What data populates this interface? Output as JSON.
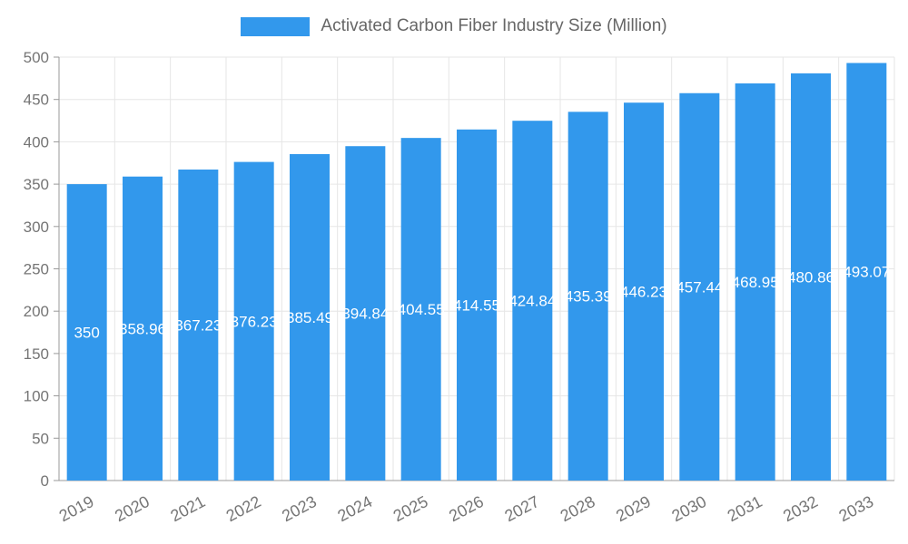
{
  "chart_data": {
    "type": "bar",
    "title": "Activated Carbon Fiber Industry Size (Million)",
    "categories": [
      "2019",
      "2020",
      "2021",
      "2022",
      "2023",
      "2024",
      "2025",
      "2026",
      "2027",
      "2028",
      "2029",
      "2030",
      "2031",
      "2032",
      "2033"
    ],
    "values": [
      350,
      358.96,
      367.23,
      376.23,
      385.49,
      394.84,
      404.55,
      414.55,
      424.84,
      435.39,
      446.23,
      457.44,
      468.95,
      480.86,
      493.07
    ],
    "value_labels": [
      "350",
      "358.96",
      "367.23",
      "376.23",
      "385.49",
      "394.84",
      "404.55",
      "414.55",
      "424.84",
      "435.39",
      "446.23",
      "457.44",
      "468.95",
      "480.86",
      "493.07"
    ],
    "xlabel": "",
    "ylabel": "",
    "ylim": [
      0,
      500
    ],
    "ytick_step": 50,
    "ytick_labels": [
      "0",
      "50",
      "100",
      "150",
      "200",
      "250",
      "300",
      "350",
      "400",
      "450",
      "500"
    ],
    "grid": true,
    "legend_position": "top",
    "bar_color": "#3298EC",
    "value_label_color": "#ffffff",
    "axis_text_color": "#757575",
    "grid_color": "#e6e6e6",
    "axis_line_color": "#999999"
  }
}
